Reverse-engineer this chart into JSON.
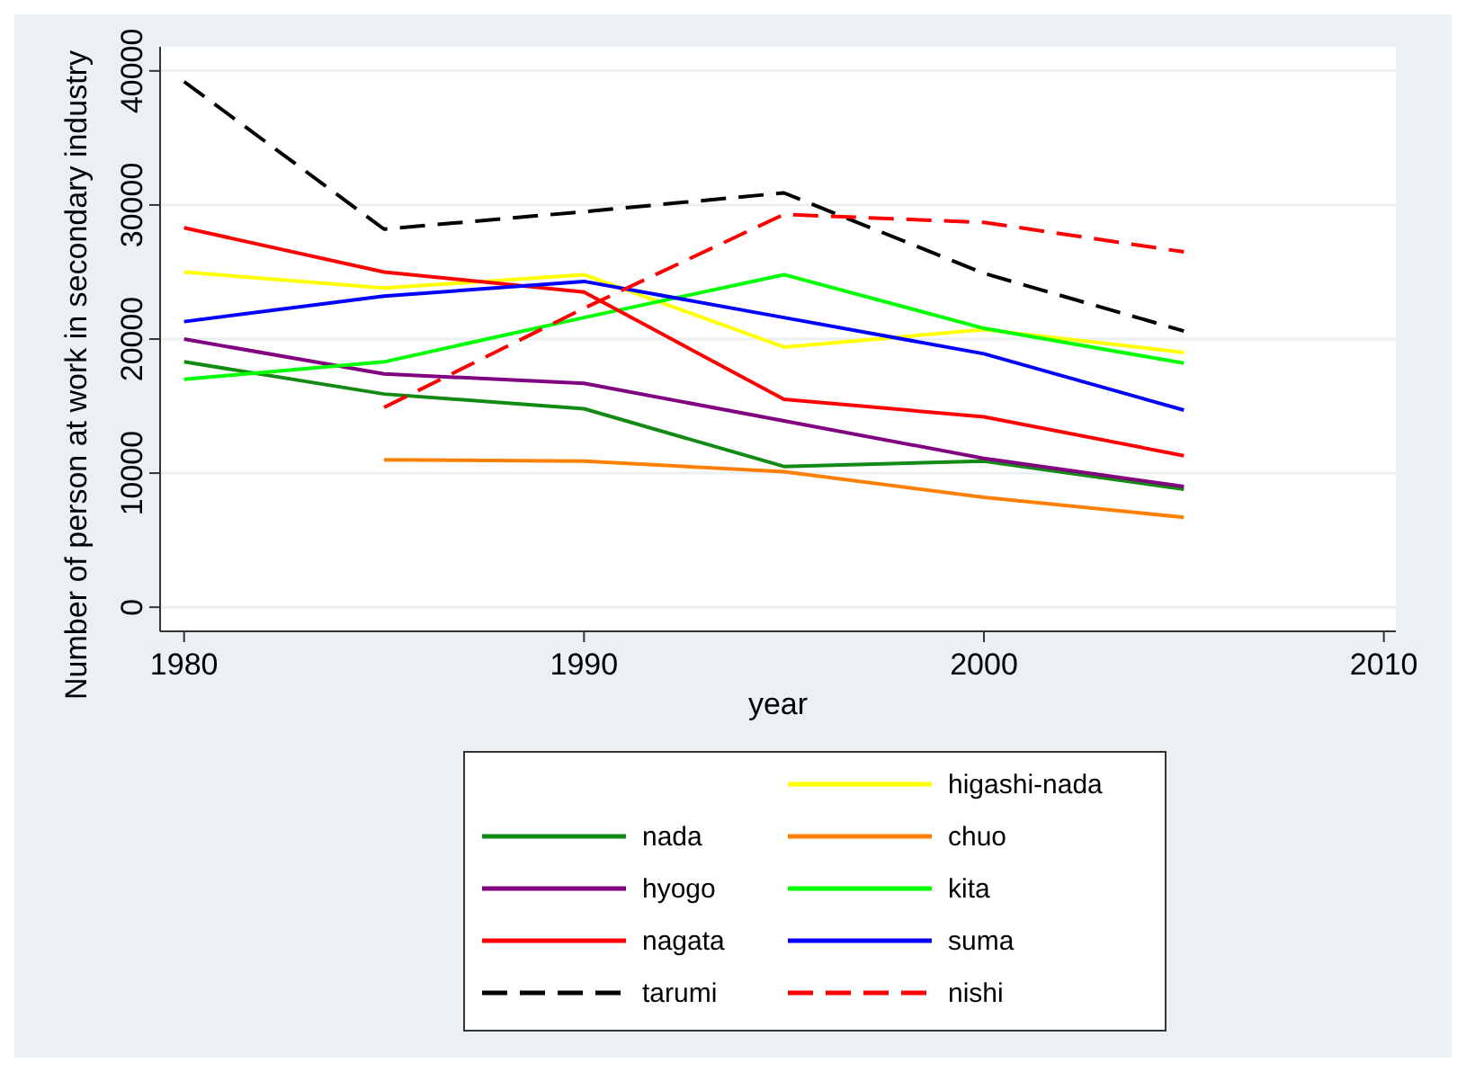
{
  "chart_data": {
    "type": "line",
    "xlabel": "year",
    "ylabel": "Number of person at work in secondary industry",
    "x": [
      1980,
      1985,
      1990,
      1995,
      2000,
      2005
    ],
    "xlim": [
      1979.4,
      2010.3
    ],
    "xticks": [
      1980,
      1990,
      2000,
      2010
    ],
    "ylim": [
      -1800,
      41800
    ],
    "yticks": [
      0,
      10000,
      20000,
      30000,
      40000
    ],
    "grid": "y",
    "legend": "bottom",
    "series": [
      {
        "name": "higashi-nada",
        "color": "#ffff00",
        "line_style": "solid",
        "values": [
          25000,
          23800,
          24800,
          19400,
          20700,
          19000
        ]
      },
      {
        "name": "nada",
        "color": "#138a13",
        "line_style": "solid",
        "values": [
          18300,
          15900,
          14800,
          10500,
          10900,
          8800
        ]
      },
      {
        "name": "chuo",
        "color": "#ff8000",
        "line_style": "solid",
        "values": [
          null,
          11000,
          10900,
          10100,
          8200,
          6700
        ]
      },
      {
        "name": "hyogo",
        "color": "#800080",
        "line_style": "solid",
        "values": [
          20000,
          17400,
          16700,
          13900,
          11100,
          9000
        ]
      },
      {
        "name": "kita",
        "color": "#00ff00",
        "line_style": "solid",
        "values": [
          17000,
          18300,
          21600,
          24800,
          20800,
          18200
        ]
      },
      {
        "name": "nagata",
        "color": "#ff0000",
        "line_style": "solid",
        "values": [
          28300,
          25000,
          23500,
          15500,
          14200,
          11300
        ]
      },
      {
        "name": "suma",
        "color": "#0000ff",
        "line_style": "solid",
        "values": [
          21300,
          23200,
          24300,
          21600,
          18900,
          14700
        ]
      },
      {
        "name": "tarumi",
        "color": "#000000",
        "line_style": "dashed",
        "values": [
          39200,
          28200,
          29500,
          30900,
          24900,
          20600
        ]
      },
      {
        "name": "nishi",
        "color": "#ff0000",
        "line_style": "dashed",
        "values": [
          null,
          14900,
          22300,
          29300,
          28700,
          26500
        ]
      }
    ]
  }
}
